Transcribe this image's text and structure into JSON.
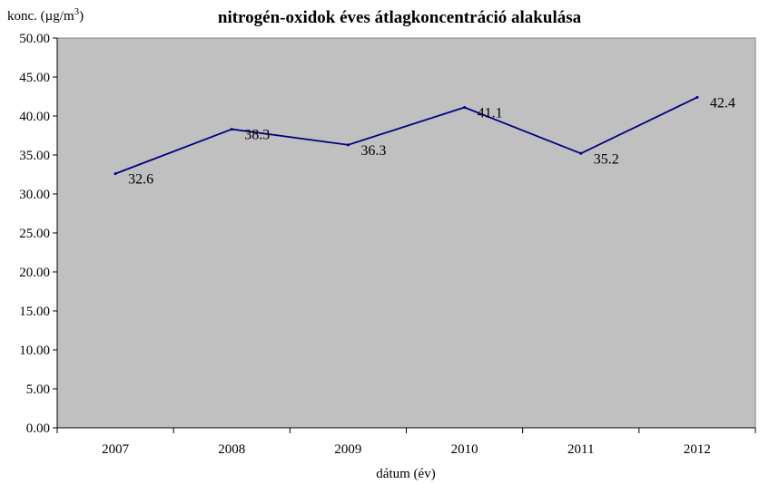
{
  "chart_data": {
    "type": "line",
    "title": "nitrogén-oxidok éves átlagkoncentráció alakulása",
    "ylabel": "konc. (µg/m",
    "ylabel_sup": "3",
    "ylabel_close": ")",
    "xlabel": "dátum (év)",
    "categories": [
      "2007",
      "2008",
      "2009",
      "2010",
      "2011",
      "2012"
    ],
    "series": [
      {
        "values": [
          32.6,
          38.3,
          36.3,
          41.1,
          35.2,
          42.4
        ],
        "labels": [
          "32.6",
          "38.3",
          "36.3",
          "41.1",
          "35.2",
          "42.4"
        ]
      }
    ],
    "yticks": [
      "0.00",
      "5.00",
      "10.00",
      "15.00",
      "20.00",
      "25.00",
      "30.00",
      "35.00",
      "40.00",
      "45.00",
      "50.00"
    ],
    "ylim": [
      0,
      50
    ],
    "grid": false,
    "legend": "none",
    "colors": {
      "plot_bg": "#c0c0c0",
      "line": "#000080",
      "frame": "#808080"
    }
  }
}
